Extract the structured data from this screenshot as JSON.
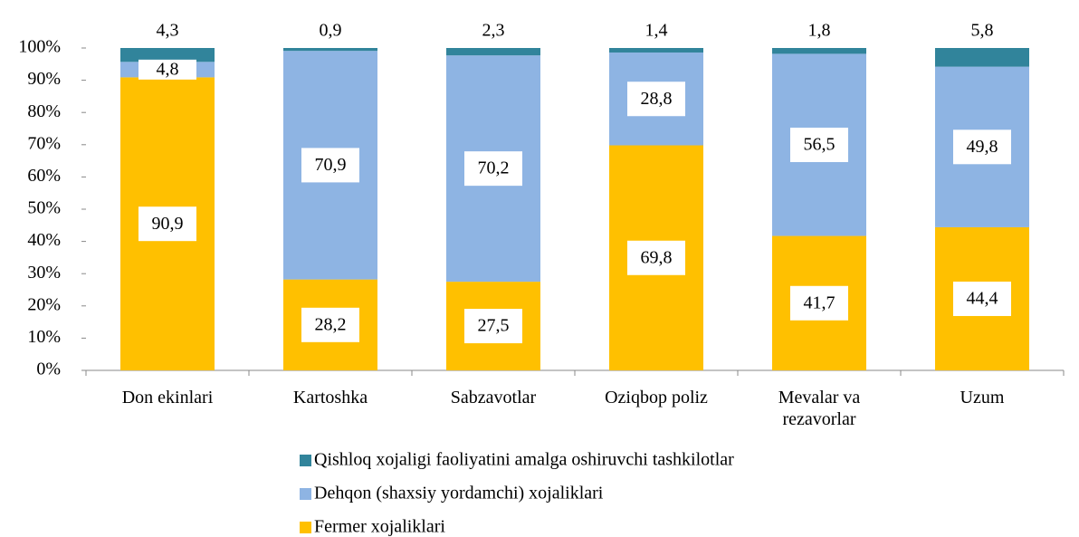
{
  "chart_data": {
    "type": "stacked_bar",
    "categories": [
      "Don ekinlari",
      "Kartoshka",
      "Sabzavotlar",
      "Oziqbop poliz",
      "Mevalar va rezavorlar",
      "Uzum"
    ],
    "series": [
      {
        "name": "Fermer xojaliklari",
        "color": "#FFC000",
        "values": [
          90.9,
          28.2,
          27.5,
          69.8,
          41.7,
          44.4
        ],
        "value_labels": [
          "90,9",
          "28,2",
          "27,5",
          "69,8",
          "41,7",
          "44,4"
        ]
      },
      {
        "name": "Dehqon (shaxsiy yordamchi) xojaliklari",
        "color": "#8EB4E3",
        "values": [
          4.8,
          70.9,
          70.2,
          28.8,
          56.5,
          49.8
        ],
        "value_labels": [
          "4,8",
          "70,9",
          "70,2",
          "28,8",
          "56,5",
          "49,8"
        ]
      },
      {
        "name": "Qishloq xojaligi faoliyatini amalga oshiruvchi tashkilotlar",
        "color": "#31849B",
        "values": [
          4.3,
          0.9,
          2.3,
          1.4,
          1.8,
          5.8
        ],
        "value_labels": [
          "4,3",
          "0,9",
          "2,3",
          "1,4",
          "1,8",
          "5,8"
        ]
      }
    ],
    "ylim": [
      0,
      100
    ],
    "yticks": [
      {
        "value": 0,
        "label": "0%"
      },
      {
        "value": 10,
        "label": "10%"
      },
      {
        "value": 20,
        "label": "20%"
      },
      {
        "value": 30,
        "label": "30%"
      },
      {
        "value": 40,
        "label": "40%"
      },
      {
        "value": 50,
        "label": "50%"
      },
      {
        "value": 60,
        "label": "60%"
      },
      {
        "value": 70,
        "label": "70%"
      },
      {
        "value": 80,
        "label": "80%"
      },
      {
        "value": 90,
        "label": "90%"
      },
      {
        "value": 100,
        "label": "100%"
      }
    ],
    "legend": "bottom"
  }
}
